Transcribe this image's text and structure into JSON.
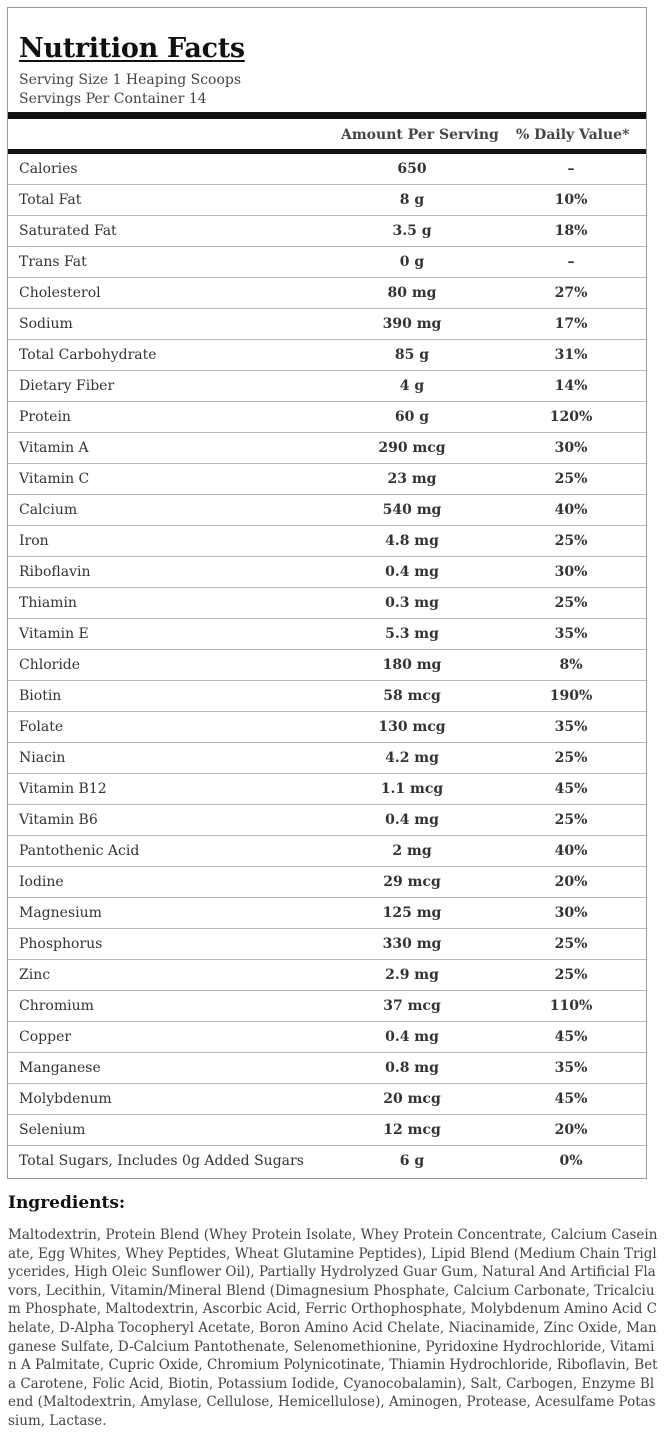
{
  "panel": {
    "title": "Nutrition Facts",
    "serving_size": "Serving Size 1 Heaping Scoops",
    "servings_per_container": "Servings Per Container 14",
    "header_amount": "Amount Per Serving",
    "header_dv": "% Daily Value*"
  },
  "rows": [
    {
      "name": "Calories",
      "amount": "650",
      "dv": "–"
    },
    {
      "name": "Total Fat",
      "amount": "8 g",
      "dv": "10%"
    },
    {
      "name": "Saturated Fat",
      "amount": "3.5 g",
      "dv": "18%"
    },
    {
      "name": "Trans Fat",
      "amount": "0 g",
      "dv": "–"
    },
    {
      "name": "Cholesterol",
      "amount": "80 mg",
      "dv": "27%"
    },
    {
      "name": "Sodium",
      "amount": "390 mg",
      "dv": "17%"
    },
    {
      "name": "Total Carbohydrate",
      "amount": "85 g",
      "dv": "31%"
    },
    {
      "name": "Dietary Fiber",
      "amount": "4 g",
      "dv": "14%"
    },
    {
      "name": "Protein",
      "amount": "60 g",
      "dv": "120%"
    },
    {
      "name": "Vitamin A",
      "amount": "290 mcg",
      "dv": "30%"
    },
    {
      "name": "Vitamin C",
      "amount": "23 mg",
      "dv": "25%"
    },
    {
      "name": "Calcium",
      "amount": "540 mg",
      "dv": "40%"
    },
    {
      "name": "Iron",
      "amount": "4.8 mg",
      "dv": "25%"
    },
    {
      "name": "Riboflavin",
      "amount": "0.4 mg",
      "dv": "30%"
    },
    {
      "name": "Thiamin",
      "amount": "0.3 mg",
      "dv": "25%"
    },
    {
      "name": "Vitamin E",
      "amount": "5.3 mg",
      "dv": "35%"
    },
    {
      "name": "Chloride",
      "amount": "180 mg",
      "dv": "8%"
    },
    {
      "name": "Biotin",
      "amount": "58 mcg",
      "dv": "190%"
    },
    {
      "name": "Folate",
      "amount": "130 mcg",
      "dv": "35%"
    },
    {
      "name": "Niacin",
      "amount": "4.2 mg",
      "dv": "25%"
    },
    {
      "name": "Vitamin B12",
      "amount": "1.1 mcg",
      "dv": "45%"
    },
    {
      "name": "Vitamin B6",
      "amount": "0.4 mg",
      "dv": "25%"
    },
    {
      "name": "Pantothenic Acid",
      "amount": "2 mg",
      "dv": "40%"
    },
    {
      "name": "Iodine",
      "amount": "29 mcg",
      "dv": "20%"
    },
    {
      "name": "Magnesium",
      "amount": "125 mg",
      "dv": "30%"
    },
    {
      "name": "Phosphorus",
      "amount": "330 mg",
      "dv": "25%"
    },
    {
      "name": "Zinc",
      "amount": "2.9 mg",
      "dv": "25%"
    },
    {
      "name": "Chromium",
      "amount": "37 mcg",
      "dv": "110%"
    },
    {
      "name": "Copper",
      "amount": "0.4 mg",
      "dv": "45%"
    },
    {
      "name": "Manganese",
      "amount": "0.8 mg",
      "dv": "35%"
    },
    {
      "name": "Molybdenum",
      "amount": "20 mcg",
      "dv": "45%"
    },
    {
      "name": "Selenium",
      "amount": "12 mcg",
      "dv": "20%"
    },
    {
      "name": "Total Sugars, Includes 0g Added Sugars",
      "amount": "6 g",
      "dv": "0%"
    }
  ],
  "ingredients": {
    "title": "Ingredients:",
    "text": "Maltodextrin, Protein Blend (Whey Protein Isolate, Whey Protein Concentrate, Calcium Caseinate, Egg Whites, Whey Peptides, Wheat Glutamine Peptides), Lipid Blend (Medium Chain Triglycerides, High Oleic Sunflower Oil), Partially Hydrolyzed Guar Gum, Natural And Artificial Flavors, Lecithin, Vitamin/Mineral Blend (Dimagnesium Phosphate, Calcium Carbonate, Tricalcium Phosphate, Maltodextrin, Ascorbic Acid, Ferric Orthophosphate, Molybdenum Amino Acid Chelate, D-Alpha Tocopheryl Acetate, Boron Amino Acid Chelate, Niacinamide, Zinc Oxide, Manganese Sulfate, D-Calcium Pantothenate, Selenomethionine, Pyridoxine Hydrochloride, Vitamin A Palmitate, Cupric Oxide, Chromium Polynicotinate, Thiamin Hydrochloride, Riboflavin, Beta Carotene, Folic Acid, Biotin, Potassium Iodide, Cyanocobalamin), Salt, Carbogen, Enzyme Blend (Maltodextrin, Amylase, Cellulose, Hemicellulose), Aminogen, Protease, Acesulfame Potassium, Lactase."
  }
}
